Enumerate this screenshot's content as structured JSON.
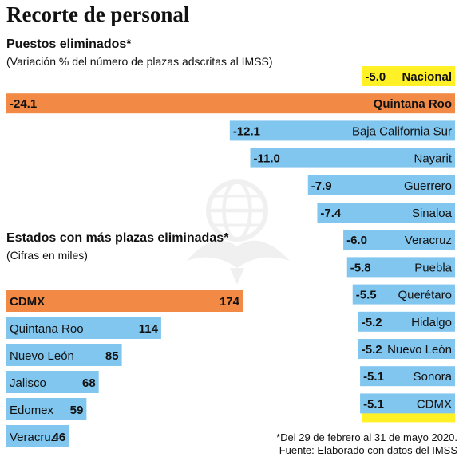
{
  "title": "Recorte de personal",
  "colors": {
    "national": "#fff126",
    "highlight": "#f28a45",
    "bar": "#81c6ee",
    "text": "#111111",
    "watermark": "#888888"
  },
  "watermark_icon": "imss-eagle-logo",
  "chart_data": [
    {
      "type": "bar",
      "orientation": "horizontal",
      "title": "Puestos eliminados*",
      "subtitle": "(Variación % del número de plazas adscritas al IMSS)",
      "categories": [
        "Nacional",
        "Quintana Roo",
        "Baja California Sur",
        "Nayarit",
        "Guerrero",
        "Sinaloa",
        "Veracruz",
        "Puebla",
        "Querétaro",
        "Hidalgo",
        "Nuevo León",
        "Sonora",
        "CDMX"
      ],
      "values": [
        -5.0,
        -24.1,
        -12.1,
        -11.0,
        -7.9,
        -7.4,
        -6.0,
        -5.8,
        -5.5,
        -5.2,
        -5.2,
        -5.1,
        -5.1
      ],
      "value_labels": [
        "-5.0",
        "-24.1",
        "-12.1",
        "-11.0",
        "-7.9",
        "-7.4",
        "-6.0",
        "-5.8",
        "-5.5",
        "-5.2",
        "-5.2",
        "-5.1",
        "-5.1"
      ],
      "highlight": [
        "national",
        "highlight",
        "bar",
        "bar",
        "bar",
        "bar",
        "bar",
        "bar",
        "bar",
        "bar",
        "bar",
        "bar",
        "bar"
      ],
      "xlim": [
        -24.1,
        0
      ]
    },
    {
      "type": "bar",
      "orientation": "horizontal",
      "title": "Estados con más plazas eliminadas*",
      "subtitle": "(Cifras en miles)",
      "categories": [
        "CDMX",
        "Quintana Roo",
        "Nuevo León",
        "Jalisco",
        "Edomex",
        "Veracruz"
      ],
      "values": [
        174,
        114,
        85,
        68,
        59,
        46
      ],
      "highlight": [
        "highlight",
        "bar",
        "bar",
        "bar",
        "bar",
        "bar"
      ],
      "xlim": [
        0,
        174
      ]
    }
  ],
  "footnotes": {
    "period": "*Del 29 de febrero al 31 de mayo 2020.",
    "source": "Fuente: Elaborado con datos del IMSS"
  }
}
